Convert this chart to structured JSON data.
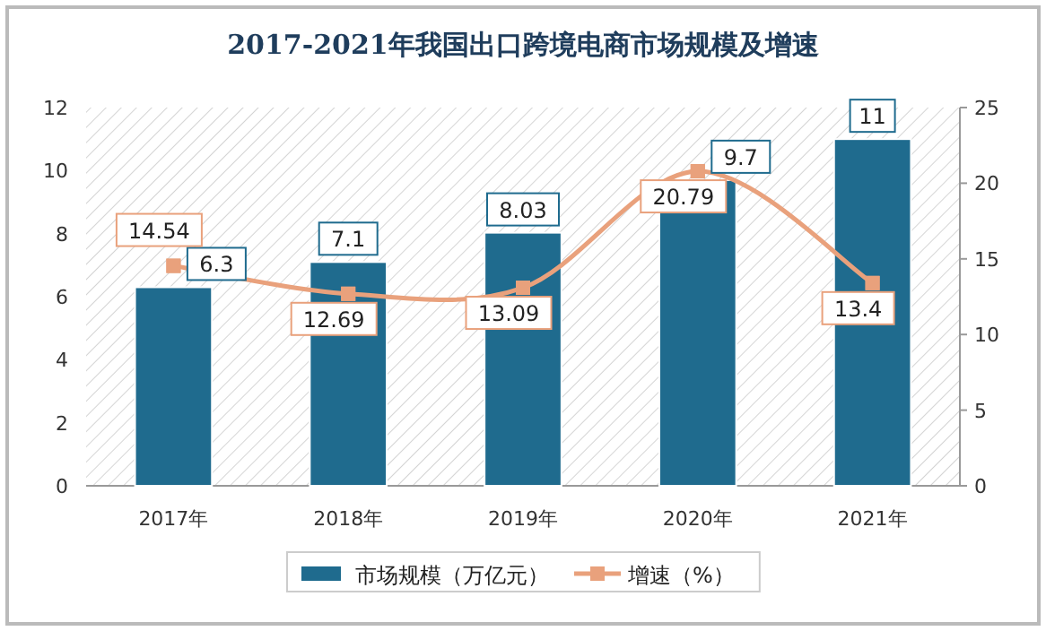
{
  "chart_data": {
    "type": "bar",
    "title": "2017-2021年我国出口跨境电商市场规模及增速",
    "categories": [
      "2017年",
      "2018年",
      "2019年",
      "2020年",
      "2021年"
    ],
    "series": [
      {
        "name": "市场规模（万亿元）",
        "color": "#1f6b8e",
        "values": [
          6.3,
          7.1,
          8.03,
          9.7,
          11
        ]
      },
      {
        "name": "增速（%）",
        "type": "line",
        "axis": "y2",
        "color": "#e9a17c",
        "marker": "square",
        "values": [
          14.54,
          12.69,
          13.09,
          20.79,
          13.4
        ]
      }
    ],
    "ylim": [
      0,
      12
    ],
    "yticks": [
      0,
      2,
      4,
      6,
      8,
      10,
      12
    ],
    "y2lim": [
      0,
      25
    ],
    "y2ticks": [
      0,
      5,
      10,
      15,
      20,
      25
    ],
    "data_labels": true,
    "legend": "bottom",
    "grid": false
  }
}
